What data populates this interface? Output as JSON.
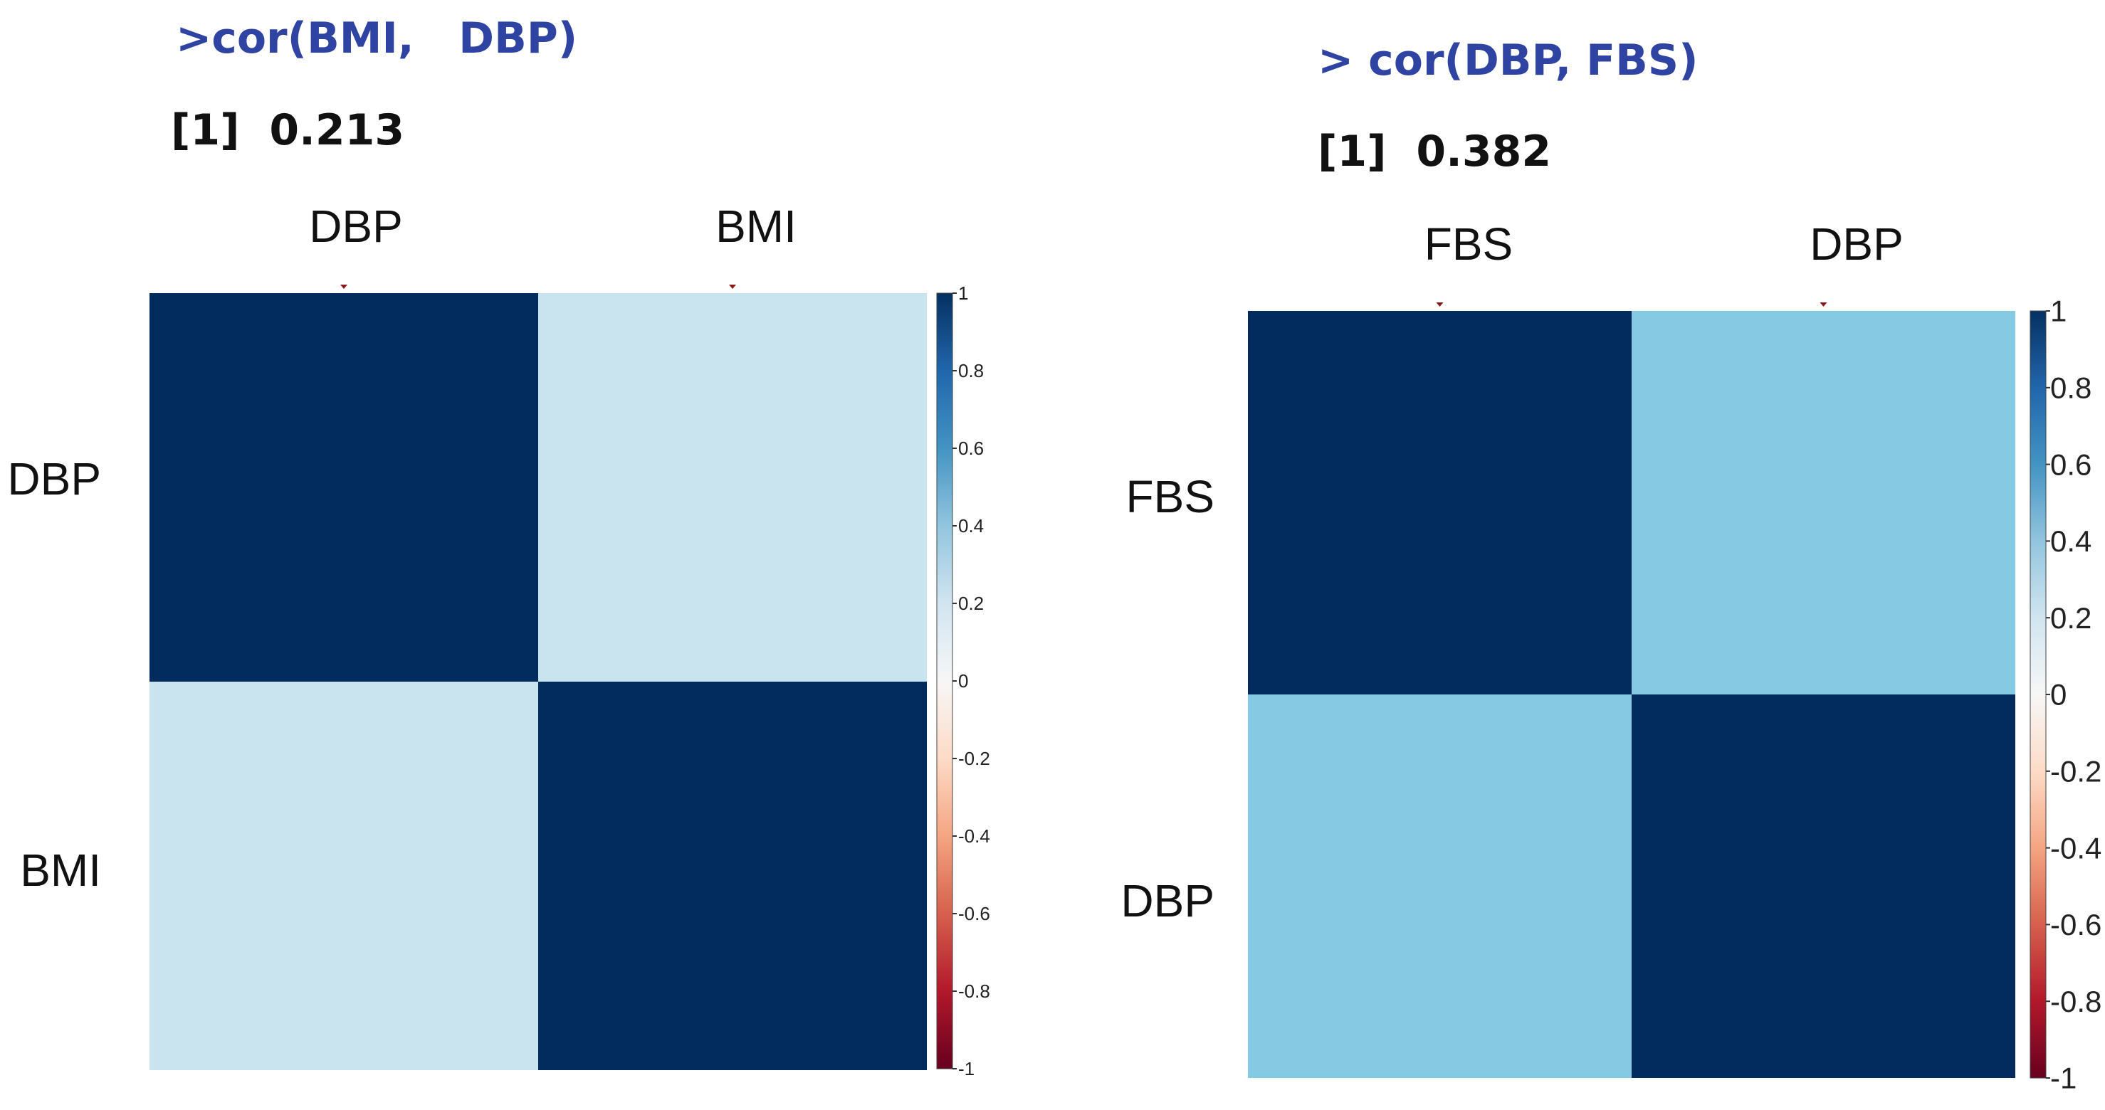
{
  "colors": {
    "strong_blue": "#022b5e",
    "light_blue_left": "#c9e3ef",
    "mid_blue_right": "#85c9e2",
    "tick_marks": "#8b1a1a",
    "command_text": "#2f43a3",
    "result_text": "#111111"
  },
  "colorbar": {
    "stops": [
      {
        "value": 1.0,
        "color": "#053061"
      },
      {
        "value": 0.8,
        "color": "#2166ac"
      },
      {
        "value": 0.6,
        "color": "#4393c3"
      },
      {
        "value": 0.4,
        "color": "#92c5de"
      },
      {
        "value": 0.2,
        "color": "#d1e5f0"
      },
      {
        "value": 0.0,
        "color": "#f7f7f7"
      },
      {
        "value": -0.2,
        "color": "#fddbc7"
      },
      {
        "value": -0.4,
        "color": "#f4a582"
      },
      {
        "value": -0.6,
        "color": "#d6604d"
      },
      {
        "value": -0.8,
        "color": "#b2182b"
      },
      {
        "value": -1.0,
        "color": "#67001f"
      }
    ]
  },
  "chart_data": [
    {
      "type": "heatmap",
      "command": ">cor(BMI,   DBP)",
      "result": "[1]  0.213",
      "columns": [
        "DBP",
        "BMI"
      ],
      "rows": [
        "DBP",
        "BMI"
      ],
      "values": [
        [
          1,
          0.213
        ],
        [
          0.213,
          1
        ]
      ],
      "colorbar_ticks": [
        "1",
        "0.8",
        "0.6",
        "0.4",
        "0.2",
        "0",
        "-0.2",
        "-0.4",
        "-0.6",
        "-0.8",
        "-1"
      ],
      "colorbar_range": [
        -1,
        1
      ],
      "off_diagonal_color": "#c9e3ef",
      "diagonal_color": "#022b5e"
    },
    {
      "type": "heatmap",
      "command": "> cor(DBP, FBS)",
      "result": "[1]  0.382",
      "columns": [
        "FBS",
        "DBP"
      ],
      "rows": [
        "FBS",
        "DBP"
      ],
      "values": [
        [
          1,
          0.382
        ],
        [
          0.382,
          1
        ]
      ],
      "colorbar_ticks": [
        "1",
        "0.8",
        "0.6",
        "0.4",
        "0.2",
        "0",
        "-0.2",
        "-0.4",
        "-0.6",
        "-0.8",
        "-1"
      ],
      "colorbar_range": [
        -1,
        1
      ],
      "off_diagonal_color": "#85c9e2",
      "diagonal_color": "#022b5e"
    }
  ]
}
